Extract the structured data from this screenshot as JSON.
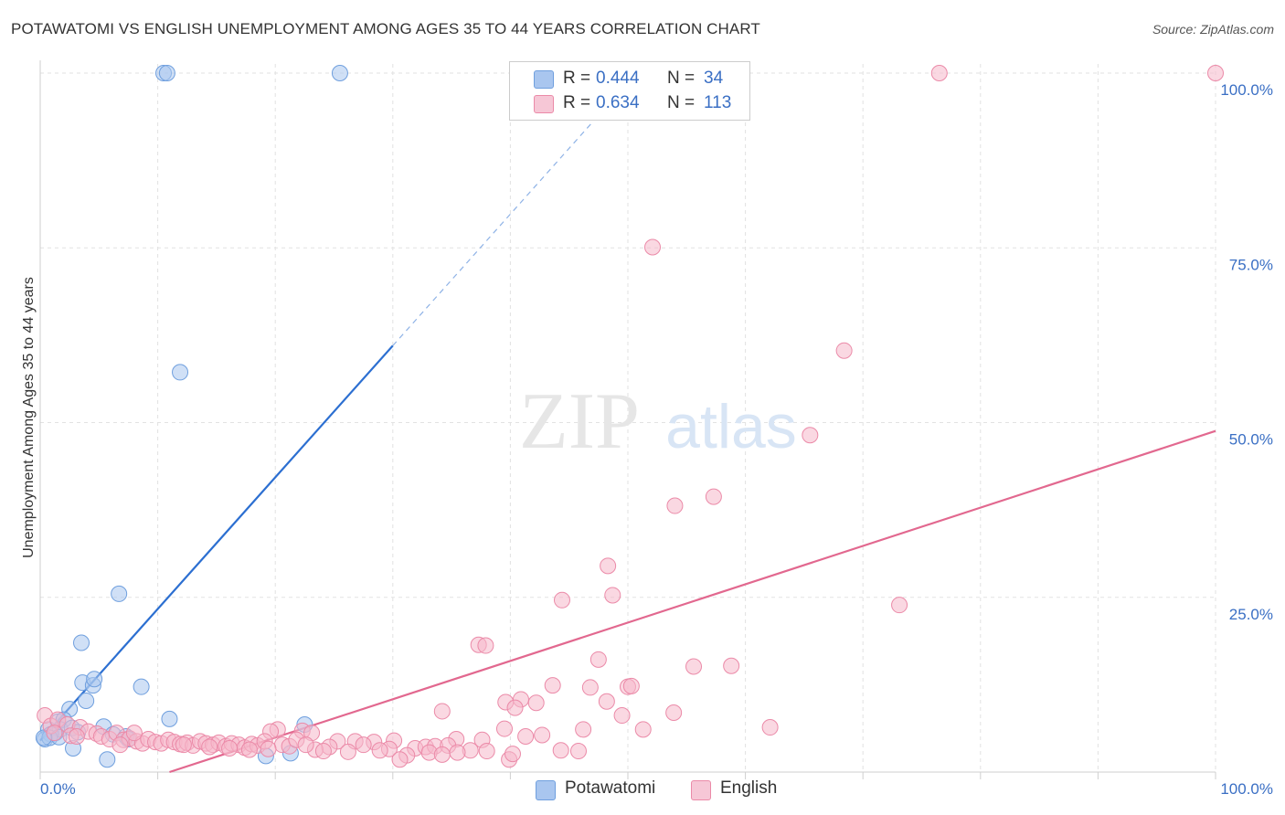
{
  "title": "POTAWATOMI VS ENGLISH UNEMPLOYMENT AMONG AGES 35 TO 44 YEARS CORRELATION CHART",
  "source": "Source: ZipAtlas.com",
  "watermark": {
    "zip": "ZIP",
    "atlas": "atlas"
  },
  "legend": {
    "r_label": "R =",
    "n_label": "N =",
    "rows": [
      {
        "name": "Potawatomi",
        "r": "0.444",
        "n": "34",
        "color": "#a9c6ef",
        "stroke": "#6f9fde"
      },
      {
        "name": "English",
        "r": "0.634",
        "n": "113",
        "color": "#f6b8cb",
        "stroke": "#eb8aa8"
      }
    ]
  },
  "chart_data": {
    "type": "scatter",
    "title": "POTAWATOMI VS ENGLISH UNEMPLOYMENT AMONG AGES 35 TO 44 YEARS CORRELATION CHART",
    "xlabel": "",
    "ylabel": "Unemployment Among Ages 35 to 44 years",
    "xlim": [
      0,
      100
    ],
    "ylim": [
      0,
      100
    ],
    "x_tick_labels": [
      "0.0%",
      "100.0%"
    ],
    "y_tick_labels": [
      "100.0%",
      "75.0%",
      "50.0%",
      "25.0%"
    ],
    "y_ticks": [
      100,
      75,
      50,
      25
    ],
    "grid": true,
    "legend_position": "top-center",
    "series": [
      {
        "name": "Potawatomi",
        "color": "#a9c6ef",
        "stroke": "#6f9fde",
        "trend": {
          "x0": 0,
          "y0": 4.5,
          "x1": 30,
          "y1": 61,
          "dash_to_x": 47,
          "dash_to_y": 93,
          "color": "#2c6fd1"
        },
        "points": [
          [
            10.5,
            100
          ],
          [
            10.8,
            100
          ],
          [
            25.5,
            100
          ],
          [
            11.9,
            57.2
          ],
          [
            6.7,
            25.5
          ],
          [
            3.5,
            18.5
          ],
          [
            8.6,
            12.2
          ],
          [
            3.6,
            12.8
          ],
          [
            4.5,
            12.4
          ],
          [
            4.6,
            13.3
          ],
          [
            3.9,
            10.2
          ],
          [
            2.5,
            9
          ],
          [
            11,
            7.6
          ],
          [
            22.5,
            6.8
          ],
          [
            1.5,
            7.2
          ],
          [
            2,
            7.5
          ],
          [
            5.4,
            6.5
          ],
          [
            0.7,
            6.1
          ],
          [
            1.3,
            5.6
          ],
          [
            1.7,
            6.1
          ],
          [
            0.9,
            5.4
          ],
          [
            2.7,
            6.3
          ],
          [
            3.2,
            5.7
          ],
          [
            6.2,
            5.4
          ],
          [
            7.3,
            5.1
          ],
          [
            0.4,
            4.7
          ],
          [
            0.8,
            4.9
          ],
          [
            1.6,
            5
          ],
          [
            7.5,
            4.7
          ],
          [
            2.8,
            3.4
          ],
          [
            19.2,
            2.3
          ],
          [
            21.3,
            2.7
          ],
          [
            5.7,
            1.8
          ],
          [
            0.3,
            4.9
          ]
        ]
      },
      {
        "name": "English",
        "color": "#f6b8cb",
        "stroke": "#eb8aa8",
        "trend": {
          "x0": 11,
          "y0": 0,
          "x1": 100,
          "y1": 48.8,
          "color": "#e2688f"
        },
        "points": [
          [
            76.5,
            100
          ],
          [
            100,
            100
          ],
          [
            52.1,
            75.1
          ],
          [
            68.4,
            60.3
          ],
          [
            65.5,
            48.2
          ],
          [
            57.3,
            39.4
          ],
          [
            54,
            38.1
          ],
          [
            48.3,
            29.5
          ],
          [
            44.4,
            24.6
          ],
          [
            48.7,
            25.3
          ],
          [
            73.1,
            23.9
          ],
          [
            37.3,
            18.2
          ],
          [
            37.9,
            18.1
          ],
          [
            47.5,
            16.1
          ],
          [
            55.6,
            15.1
          ],
          [
            58.8,
            15.2
          ],
          [
            43.6,
            12.4
          ],
          [
            46.8,
            12.1
          ],
          [
            50,
            12.2
          ],
          [
            50.3,
            12.3
          ],
          [
            40.9,
            10.4
          ],
          [
            48.2,
            10.1
          ],
          [
            39.6,
            10
          ],
          [
            42.2,
            9.9
          ],
          [
            40.4,
            9.2
          ],
          [
            34.2,
            8.7
          ],
          [
            49.5,
            8.1
          ],
          [
            53.9,
            8.5
          ],
          [
            51.3,
            6.1
          ],
          [
            62.1,
            6.4
          ],
          [
            39.5,
            6.2
          ],
          [
            46.2,
            6.1
          ],
          [
            41.3,
            5.1
          ],
          [
            42.7,
            5.3
          ],
          [
            35.4,
            4.7
          ],
          [
            37.6,
            4.6
          ],
          [
            44.3,
            3.1
          ],
          [
            45.8,
            3
          ],
          [
            39.9,
            1.8
          ],
          [
            20.2,
            6.1
          ],
          [
            22.3,
            5.9
          ],
          [
            23.1,
            5.6
          ],
          [
            19.6,
            5.8
          ],
          [
            30.1,
            4.5
          ],
          [
            28.4,
            4.3
          ],
          [
            26.8,
            4.4
          ],
          [
            25.3,
            4.4
          ],
          [
            31.9,
            3.4
          ],
          [
            32.8,
            3.6
          ],
          [
            33.6,
            3.7
          ],
          [
            34.7,
            3.8
          ],
          [
            36.6,
            3.1
          ],
          [
            29.7,
            3.3
          ],
          [
            27.5,
            3.9
          ],
          [
            24.6,
            3.6
          ],
          [
            23.4,
            3.2
          ],
          [
            31.2,
            2.4
          ],
          [
            30.6,
            1.8
          ],
          [
            0.4,
            8.1
          ],
          [
            0.9,
            6.6
          ],
          [
            1.5,
            7.5
          ],
          [
            2.3,
            6.8
          ],
          [
            3.4,
            6.4
          ],
          [
            4.1,
            5.8
          ],
          [
            4.8,
            5.5
          ],
          [
            5.2,
            5.1
          ],
          [
            5.9,
            4.7
          ],
          [
            6.5,
            5.6
          ],
          [
            7.1,
            4.6
          ],
          [
            7.6,
            4.8
          ],
          [
            8.2,
            4.4
          ],
          [
            8.7,
            4.1
          ],
          [
            9.2,
            4.7
          ],
          [
            9.8,
            4.3
          ],
          [
            10.3,
            4.1
          ],
          [
            10.9,
            4.6
          ],
          [
            11.4,
            4.3
          ],
          [
            11.9,
            4
          ],
          [
            12.5,
            4.2
          ],
          [
            13,
            3.8
          ],
          [
            13.6,
            4.4
          ],
          [
            14.1,
            4.1
          ],
          [
            14.7,
            3.9
          ],
          [
            15.2,
            4.2
          ],
          [
            15.8,
            3.7
          ],
          [
            16.3,
            4.1
          ],
          [
            16.9,
            3.9
          ],
          [
            17.4,
            3.5
          ],
          [
            18,
            4
          ],
          [
            18.5,
            3.8
          ],
          [
            19.1,
            4.4
          ],
          [
            20.6,
            3.9
          ],
          [
            21.2,
            3.7
          ],
          [
            21.8,
            4.6
          ],
          [
            22.6,
            3.9
          ],
          [
            2.6,
            5.2
          ],
          [
            3.1,
            5.1
          ],
          [
            1.2,
            5.6
          ],
          [
            6.8,
            3.9
          ],
          [
            8,
            5.6
          ],
          [
            12.2,
            3.9
          ],
          [
            14.4,
            3.6
          ],
          [
            16.1,
            3.4
          ],
          [
            17.8,
            3.2
          ],
          [
            19.4,
            3.3
          ],
          [
            24.1,
            3
          ],
          [
            26.2,
            2.9
          ],
          [
            28.9,
            3.1
          ],
          [
            33.1,
            2.8
          ],
          [
            34.2,
            2.5
          ],
          [
            35.5,
            2.8
          ],
          [
            38,
            3
          ],
          [
            40.2,
            2.6
          ]
        ]
      }
    ]
  }
}
